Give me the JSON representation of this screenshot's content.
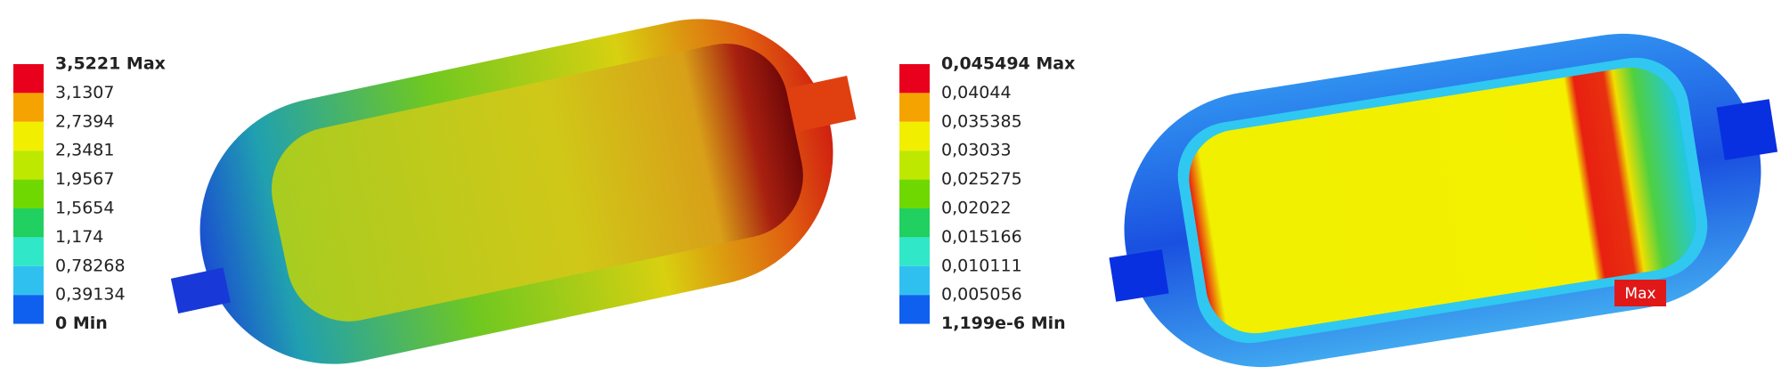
{
  "legends": [
    {
      "labels": [
        "3,5221 Max",
        "3,1307",
        "2,7394",
        "2,3481",
        "1,9567",
        "1,5654",
        "1,174",
        "0,78268",
        "0,39134",
        "0 Min"
      ],
      "colors": [
        "#e8001c",
        "#f5a300",
        "#f2ee00",
        "#bfe800",
        "#6fd800",
        "#20d060",
        "#30e8c8",
        "#30c0f0",
        "#1060f0"
      ]
    },
    {
      "labels": [
        "0,045494 Max",
        "0,04044",
        "0,035385",
        "0,03033",
        "0,025275",
        "0,02022",
        "0,015166",
        "0,010111",
        "0,005056",
        "1,199e-6 Min"
      ],
      "colors": [
        "#e8001c",
        "#f5a300",
        "#f2ee00",
        "#bfe800",
        "#6fd800",
        "#20d060",
        "#30e8c8",
        "#30c0f0",
        "#1060f0"
      ]
    }
  ],
  "annotation": "Max"
}
